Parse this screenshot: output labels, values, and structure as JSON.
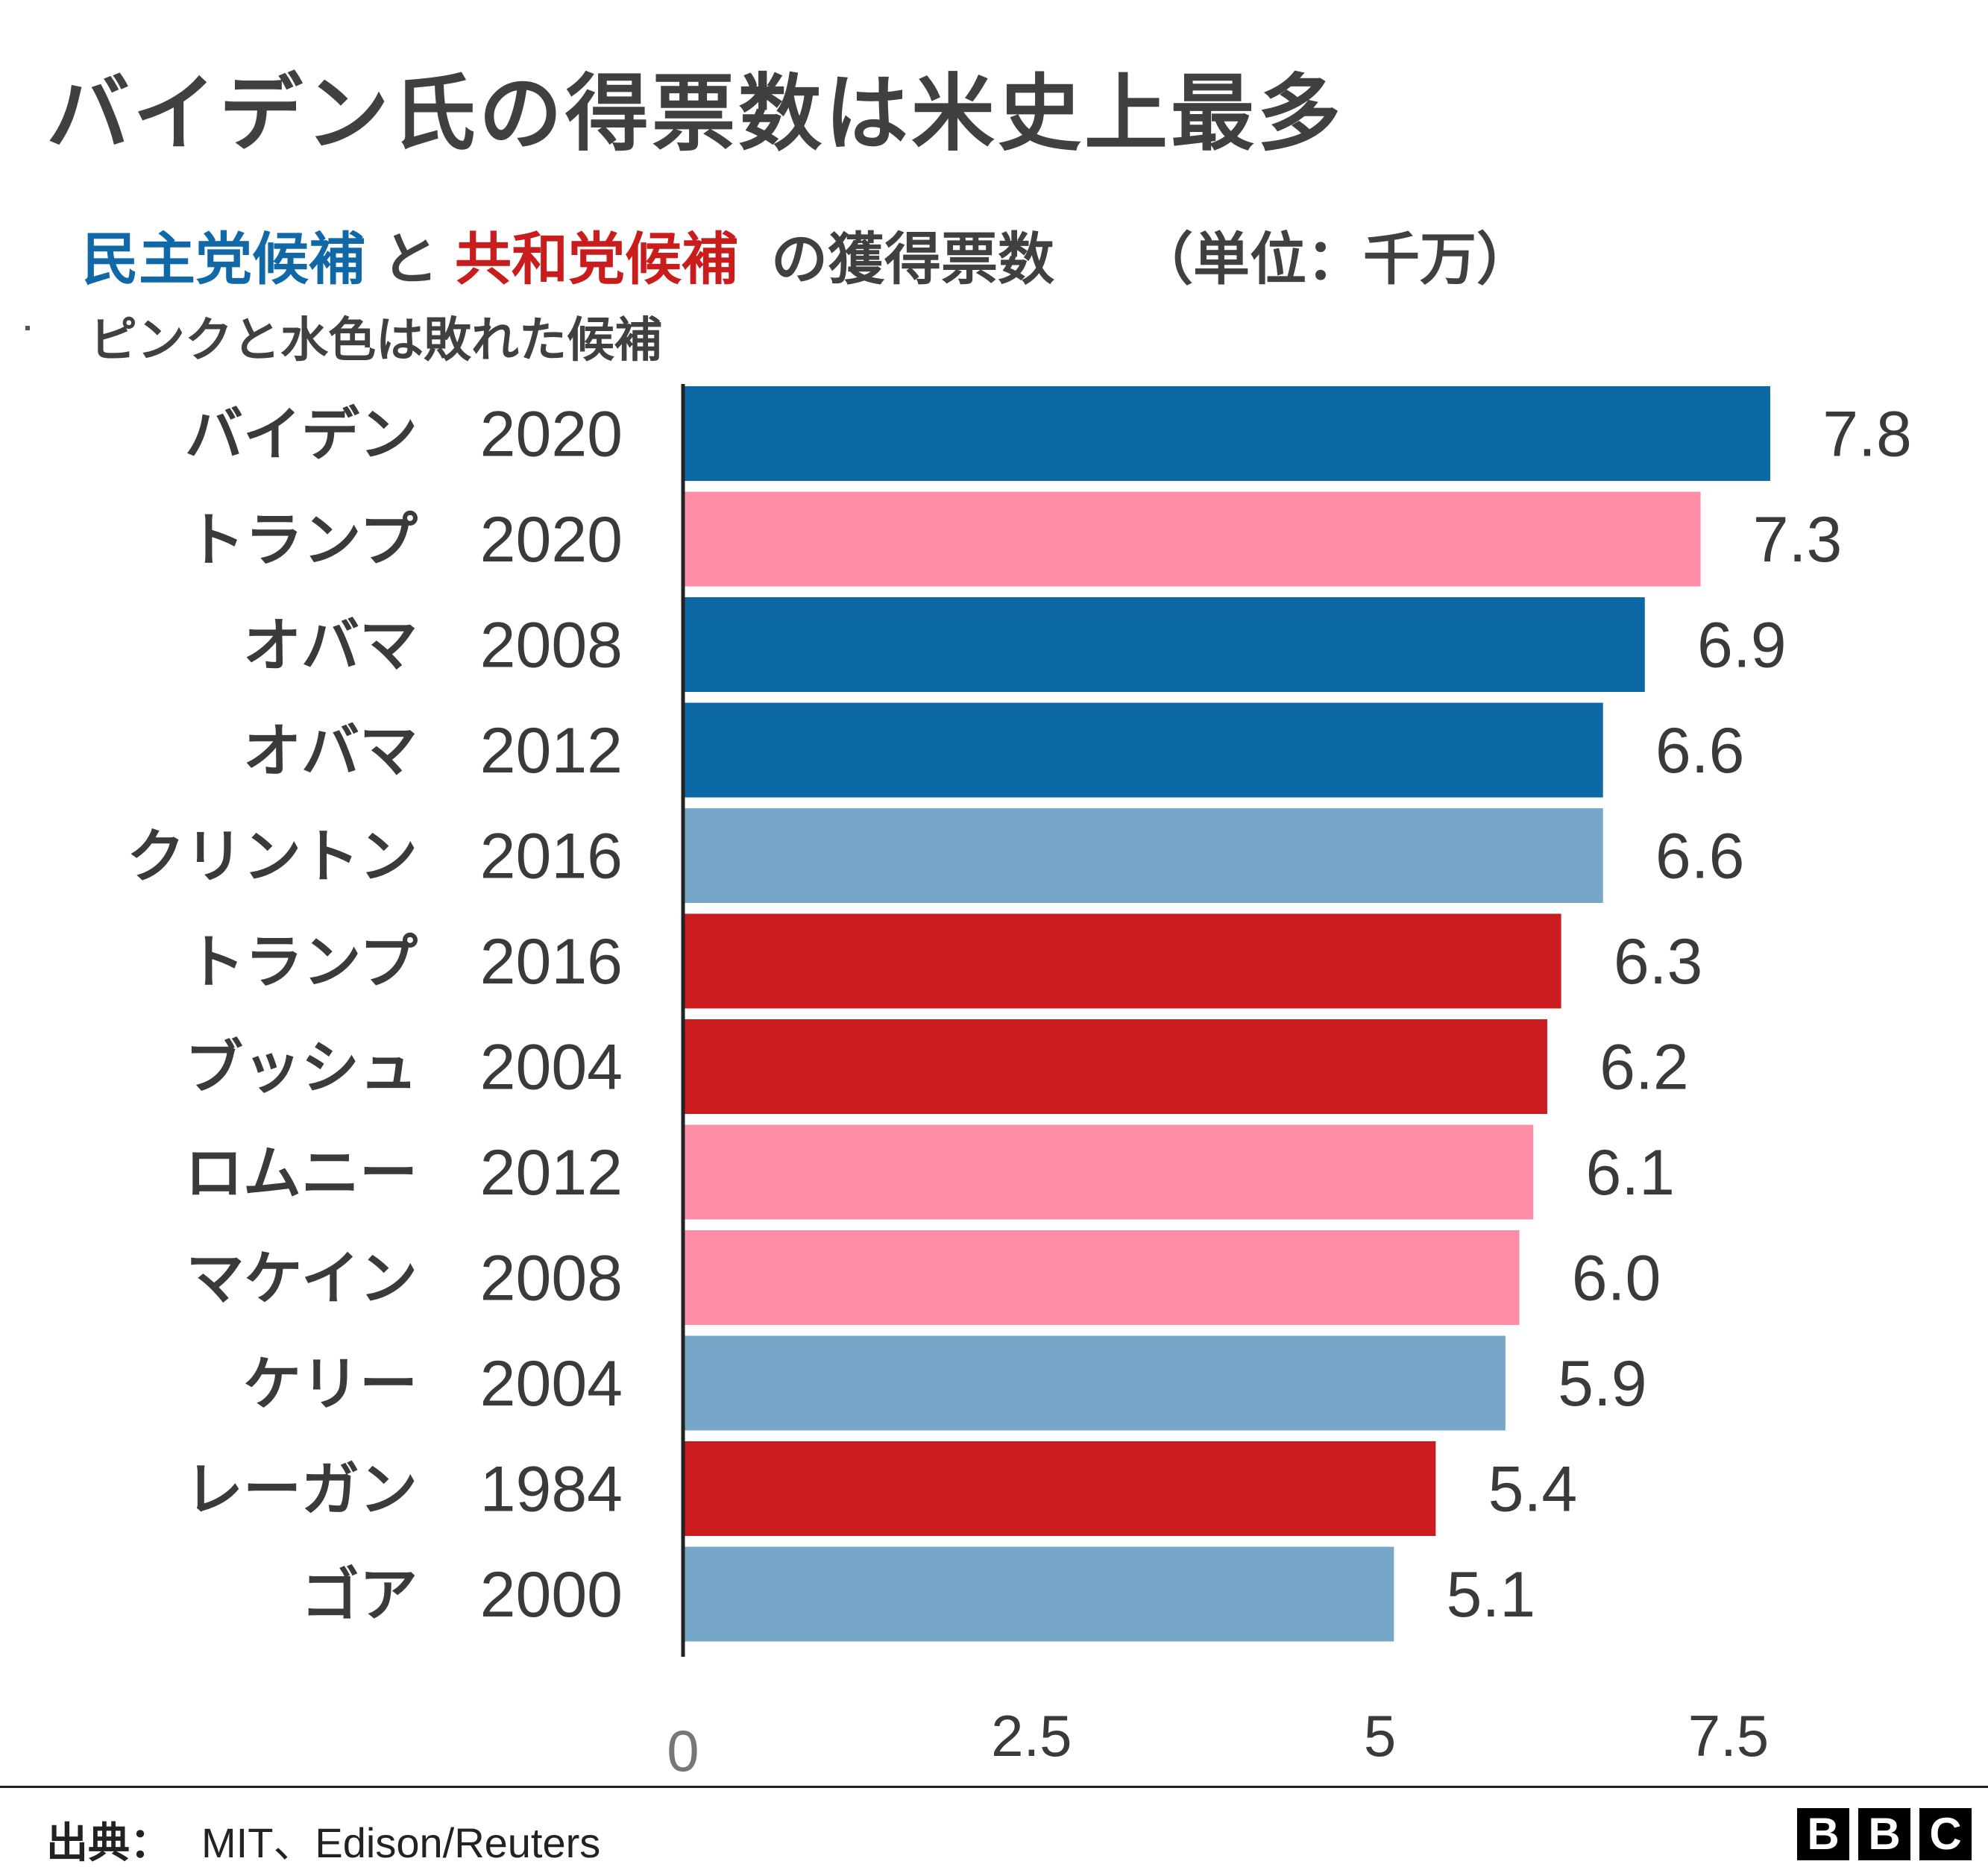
{
  "title": "バイデン氏の得票数は米史上最多",
  "subtitle": {
    "dem": "民主党候補",
    "and": "と",
    "rep": "共和党候補",
    "suffix": "の獲得票数",
    "unit": "（単位：千万）"
  },
  "note": "ピンクと水色は敗れた候補",
  "colors": {
    "dem_win": "#0d69a6",
    "dem_lose": "#76a7c9",
    "rep_win": "#cb1c1f",
    "rep_lose": "#fe8ea8",
    "axis": "#222222",
    "text": "#3a3a3a"
  },
  "chart_data": {
    "type": "bar",
    "orientation": "horizontal",
    "categories": [
      {
        "name": "バイデン",
        "year": "2020"
      },
      {
        "name": "トランプ",
        "year": "2020"
      },
      {
        "name": "オバマ",
        "year": "2008"
      },
      {
        "name": "オバマ",
        "year": "2012"
      },
      {
        "name": "クリントン",
        "year": "2016"
      },
      {
        "name": "トランプ",
        "year": "2016"
      },
      {
        "name": "ブッシュ",
        "year": "2004"
      },
      {
        "name": "ロムニー",
        "year": "2012"
      },
      {
        "name": "マケイン",
        "year": "2008"
      },
      {
        "name": "ケリー",
        "year": "2004"
      },
      {
        "name": "レーガン",
        "year": "1984"
      },
      {
        "name": "ゴア",
        "year": "2000"
      }
    ],
    "values": [
      7.8,
      7.3,
      6.9,
      6.6,
      6.6,
      6.3,
      6.2,
      6.1,
      6.0,
      5.9,
      5.4,
      5.1
    ],
    "value_labels": [
      "7.8",
      "7.3",
      "6.9",
      "6.6",
      "6.6",
      "6.3",
      "6.2",
      "6.1",
      "6.0",
      "5.9",
      "5.4",
      "5.1"
    ],
    "bar_colors": [
      "dem_win",
      "rep_lose",
      "dem_win",
      "dem_win",
      "dem_lose",
      "rep_win",
      "rep_win",
      "rep_lose",
      "rep_lose",
      "dem_lose",
      "rep_win",
      "dem_lose"
    ],
    "xticks": [
      0,
      2.5,
      5,
      7.5
    ],
    "xtick_labels": [
      "0",
      "2.5",
      "5",
      "7.5"
    ],
    "xlim": [
      0,
      7.8
    ],
    "grid": false
  },
  "source": {
    "label": "出典：",
    "text": "MIT、Edison/Reuters"
  },
  "logo": [
    "B",
    "B",
    "C"
  ]
}
